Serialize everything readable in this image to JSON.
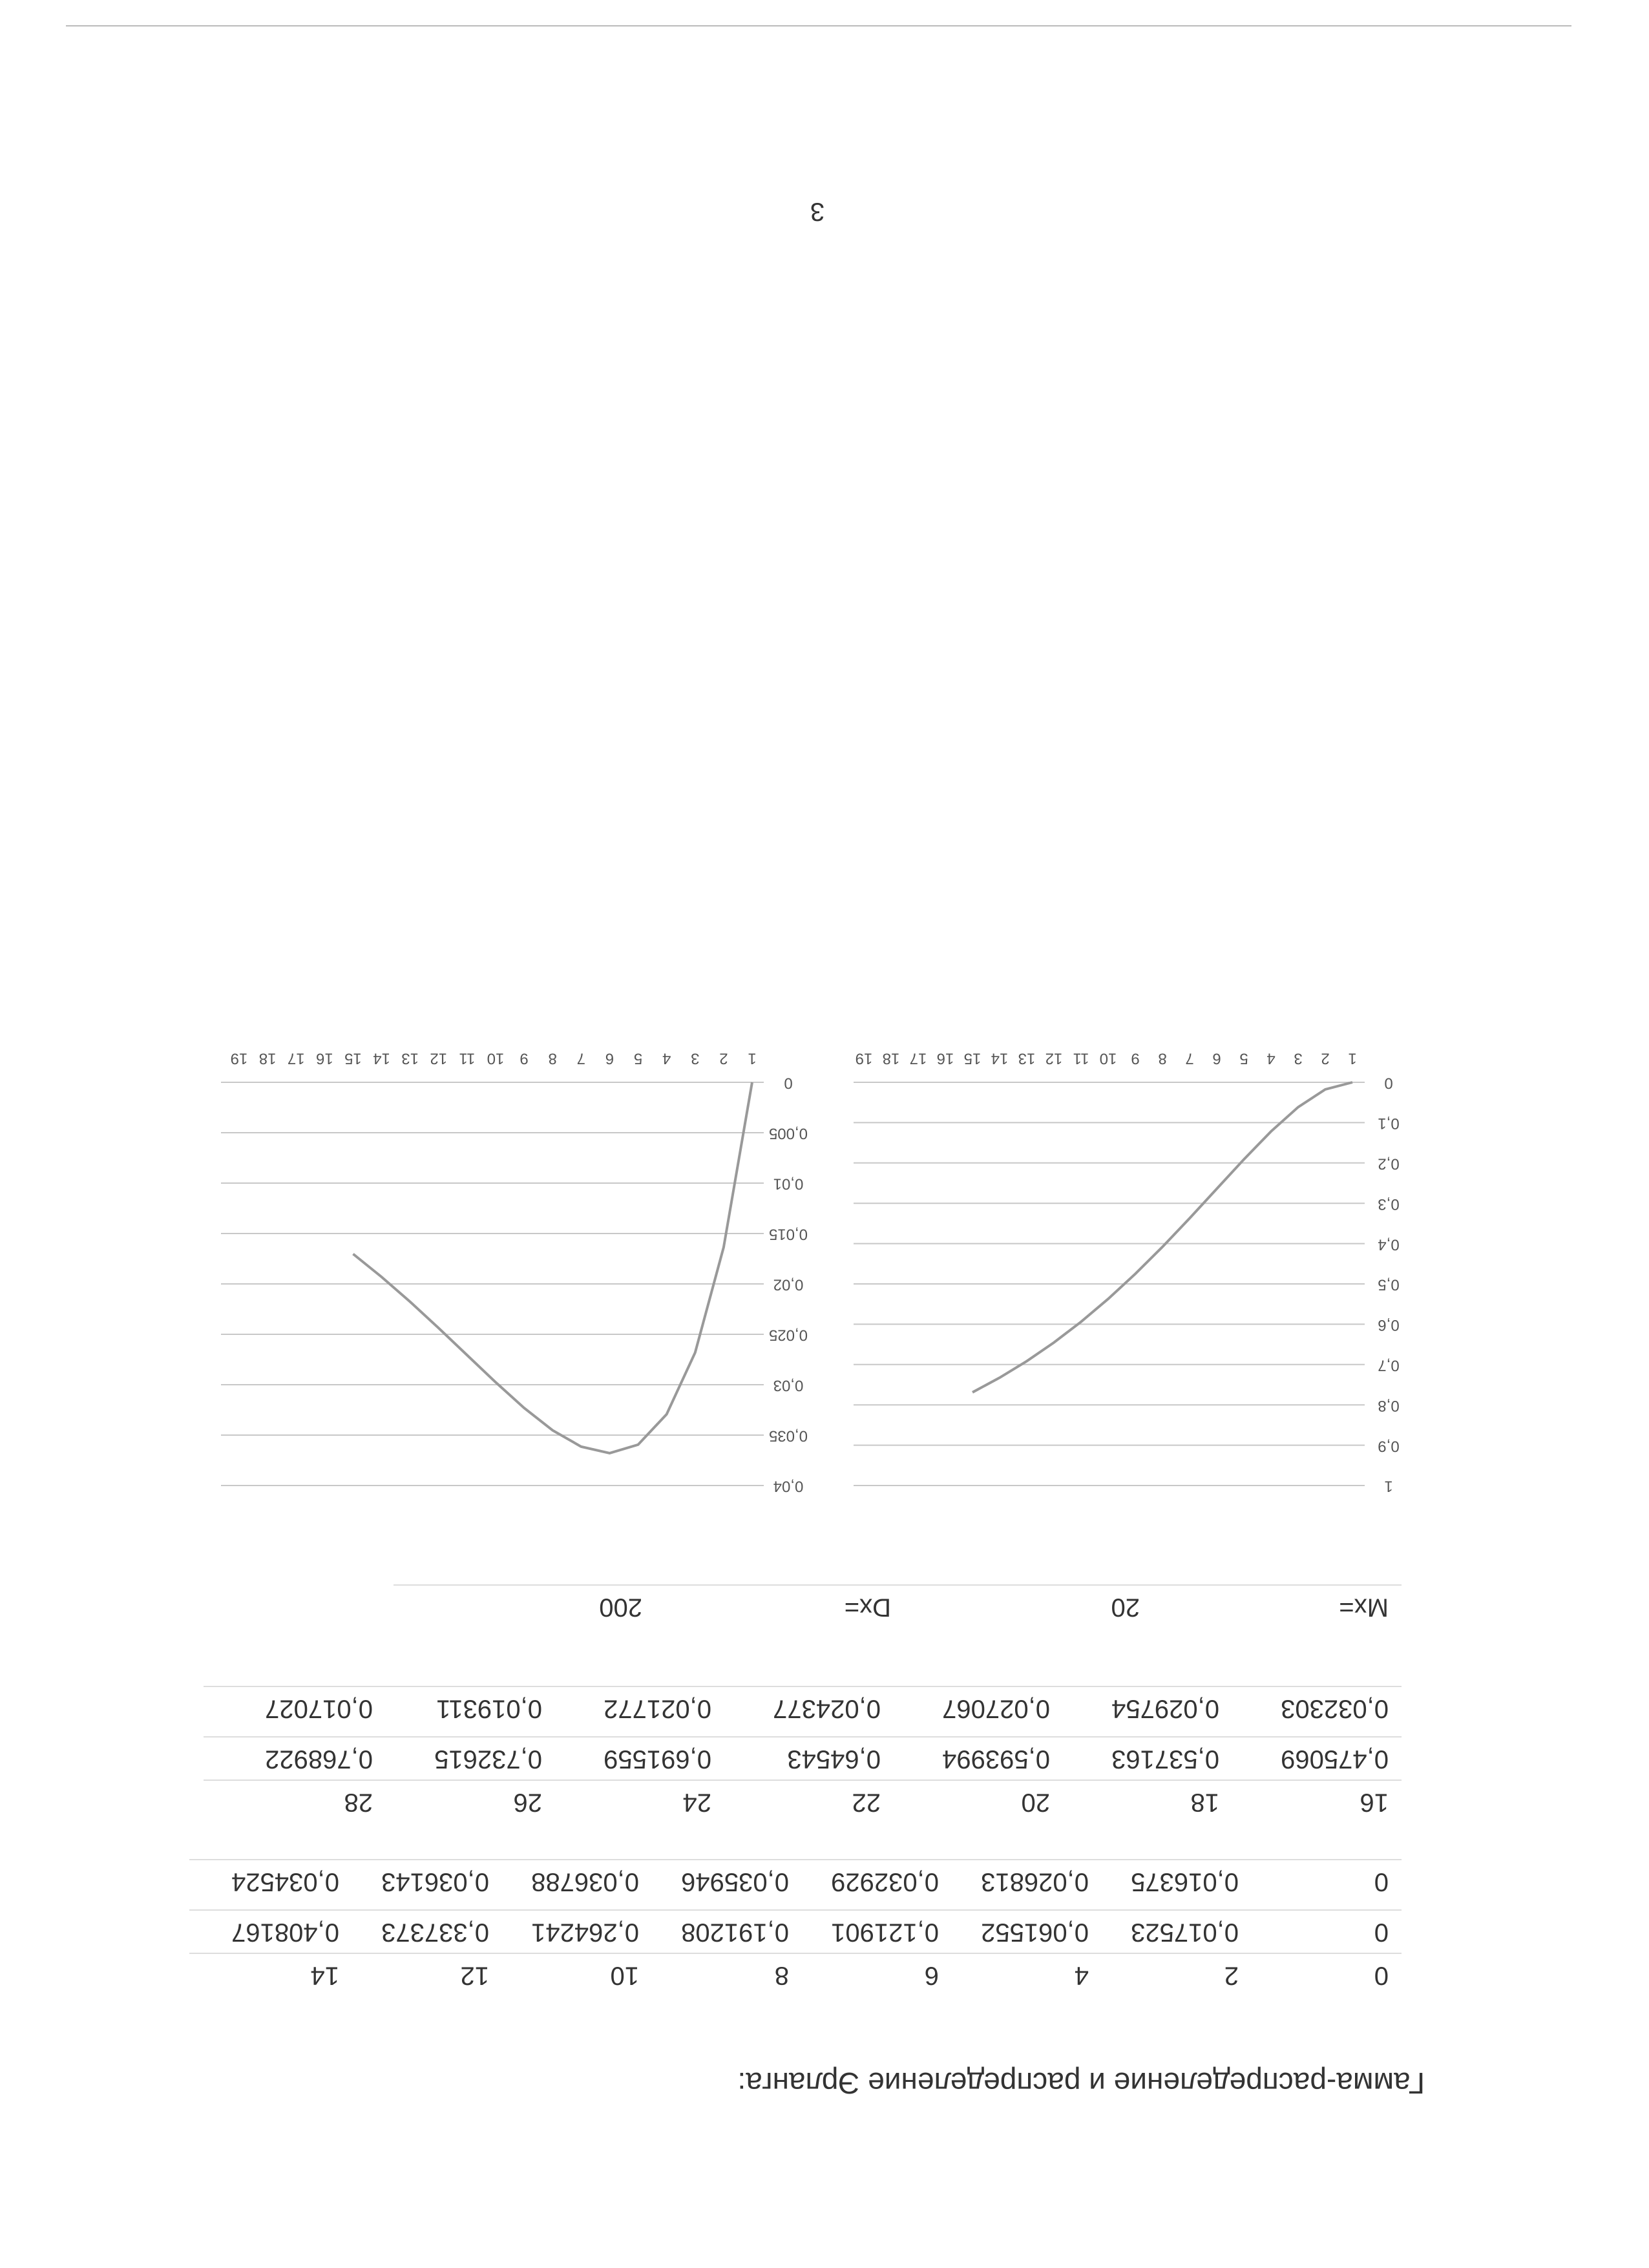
{
  "title": "Гамма-распределение и распределение Эрланга:",
  "table_1": {
    "rows": [
      [
        "0",
        "2",
        "4",
        "6",
        "8",
        "10",
        "12",
        "14"
      ],
      [
        "0",
        "0,017523",
        "0,061552",
        "0,121901",
        "0,191208",
        "0,264241",
        "0,337373",
        "0,408167"
      ],
      [
        "0",
        "0,016375",
        "0,026813",
        "0,032929",
        "0,035946",
        "0,036788",
        "0,036143",
        "0,034524"
      ]
    ]
  },
  "table_2": {
    "rows": [
      [
        "16",
        "18",
        "20",
        "22",
        "24",
        "26",
        "28"
      ],
      [
        "0,475069",
        "0,537163",
        "0,593994",
        "0,64543",
        "0,691559",
        "0,732615",
        "0,768922"
      ],
      [
        "0,032303",
        "0,029754",
        "0,027067",
        "0,024377",
        "0,021772",
        "0,019311",
        "0,017027"
      ]
    ]
  },
  "stats": {
    "rows": [
      [
        "Mx=",
        "20",
        "Dx=",
        "200"
      ]
    ]
  },
  "chart_data": [
    {
      "type": "line",
      "categories": [
        1,
        2,
        3,
        4,
        5,
        6,
        7,
        8,
        9,
        10,
        11,
        12,
        13,
        14,
        15,
        16,
        17,
        18,
        19
      ],
      "values": [
        0,
        0.017523,
        0.061552,
        0.121901,
        0.191208,
        0.264241,
        0.337373,
        0.408167,
        0.475069,
        0.537163,
        0.593994,
        0.64543,
        0.691559,
        0.732615,
        0.768922,
        null,
        null,
        null,
        null
      ],
      "color": "#999999",
      "ylim": [
        0,
        1
      ],
      "grid": true,
      "yticks": [
        0,
        {
          "value": 0.1,
          "label": "0,1"
        },
        {
          "value": 0.2,
          "label": "0,2"
        },
        {
          "value": 0.3,
          "label": "0,3"
        },
        {
          "value": 0.4,
          "label": "0,4"
        },
        {
          "value": 0.5,
          "label": "0,5"
        },
        {
          "value": 0.6,
          "label": "0,6"
        },
        {
          "value": 0.7,
          "label": "0,7"
        },
        {
          "value": 0.8,
          "label": "0,8"
        },
        {
          "value": 0.9,
          "label": "0,9"
        },
        1
      ]
    },
    {
      "type": "line",
      "categories": [
        1,
        2,
        3,
        4,
        5,
        6,
        7,
        8,
        9,
        10,
        11,
        12,
        13,
        14,
        15,
        16,
        17,
        18,
        19
      ],
      "values": [
        0,
        0.016375,
        0.026813,
        0.032929,
        0.035946,
        0.036788,
        0.036143,
        0.034524,
        0.032303,
        0.029754,
        0.027067,
        0.024377,
        0.021772,
        0.019311,
        0.017027,
        null,
        null,
        null,
        null
      ],
      "color": "#999999",
      "ylim": [
        0,
        0.04
      ],
      "grid": true,
      "yticks": [
        0,
        {
          "value": 0.005,
          "label": "0,005"
        },
        {
          "value": 0.01,
          "label": "0,01"
        },
        {
          "value": 0.015,
          "label": "0,015"
        },
        {
          "value": 0.02,
          "label": "0,02"
        },
        {
          "value": 0.025,
          "label": "0,025"
        },
        {
          "value": 0.03,
          "label": "0,03"
        },
        {
          "value": 0.035,
          "label": "0,035"
        },
        {
          "value": 0.04,
          "label": "0,04"
        }
      ]
    }
  ],
  "page_number": "3"
}
